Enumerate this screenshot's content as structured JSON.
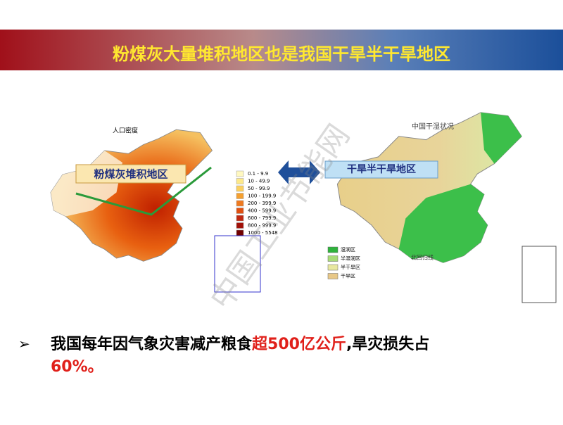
{
  "header": {
    "title": "粉煤灰大量堆积地区也是我国干旱半干旱地区"
  },
  "left_map": {
    "title": "人口密度",
    "label": "粉煤灰堆积地区",
    "legend": [
      "0.1 - 9.9",
      "10 - 49.9",
      "50 - 99.9",
      "100 - 199.9",
      "200 - 399.9",
      "400 - 599.9",
      "600 - 799.9",
      "800 - 999.9",
      "1000 - 5548"
    ]
  },
  "right_map": {
    "title": "中国干湿状况",
    "label": "干旱半干旱地区",
    "line_label": "北回归线",
    "legend": [
      "湿润区",
      "半湿润区",
      "半干旱区",
      "干旱区"
    ]
  },
  "watermark": "中国工业节能网",
  "bullet": {
    "part1": "我国每年因气象灾害减产粮食",
    "part2": "超500亿公斤",
    "part3": ",旱灾损失占",
    "part4": "60%。"
  }
}
